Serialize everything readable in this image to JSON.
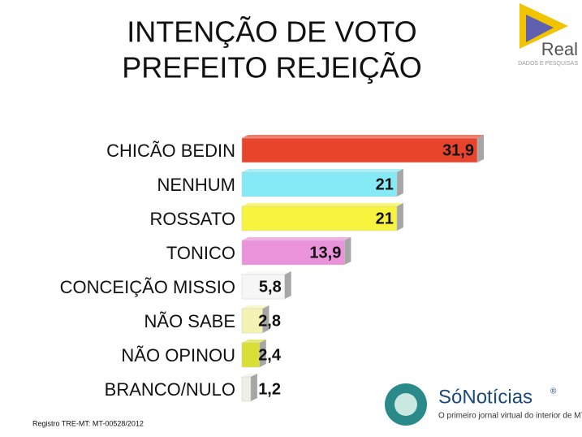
{
  "chart_data": {
    "type": "bar",
    "orientation": "horizontal",
    "title": [
      "INTENÇÃO DE VOTO",
      "PREFEITO REJEIÇÃO"
    ],
    "categories": [
      "CHICÃO BEDIN",
      "NENHUM",
      "ROSSATO",
      "TONICO",
      "CONCEIÇÃO MISSIO",
      "NÃO SABE",
      "NÃO OPINOU",
      "BRANCO/NULO"
    ],
    "values": [
      31.9,
      21,
      21,
      13.9,
      5.8,
      2.8,
      2.4,
      1.2
    ],
    "value_labels": [
      "31,9",
      "21",
      "21",
      "13,9",
      "5,8",
      "2,8",
      "2,4",
      "1,2"
    ],
    "colors": [
      "#e8432b",
      "#86e9f6",
      "#f6f43c",
      "#ea92da",
      "#f6f6f6",
      "#f4f3b4",
      "#d9df34",
      "#efefe6"
    ]
  },
  "logos": {
    "real": {
      "name": "Real",
      "tagline": "DADOS E PESQUISAS"
    },
    "sonoticias": {
      "name": "SóNotícias",
      "mark": "®",
      "tagline": "O primeiro jornal virtual do interior de MT"
    }
  },
  "footer": "Registro TRE-MT: MT-00528/2012"
}
